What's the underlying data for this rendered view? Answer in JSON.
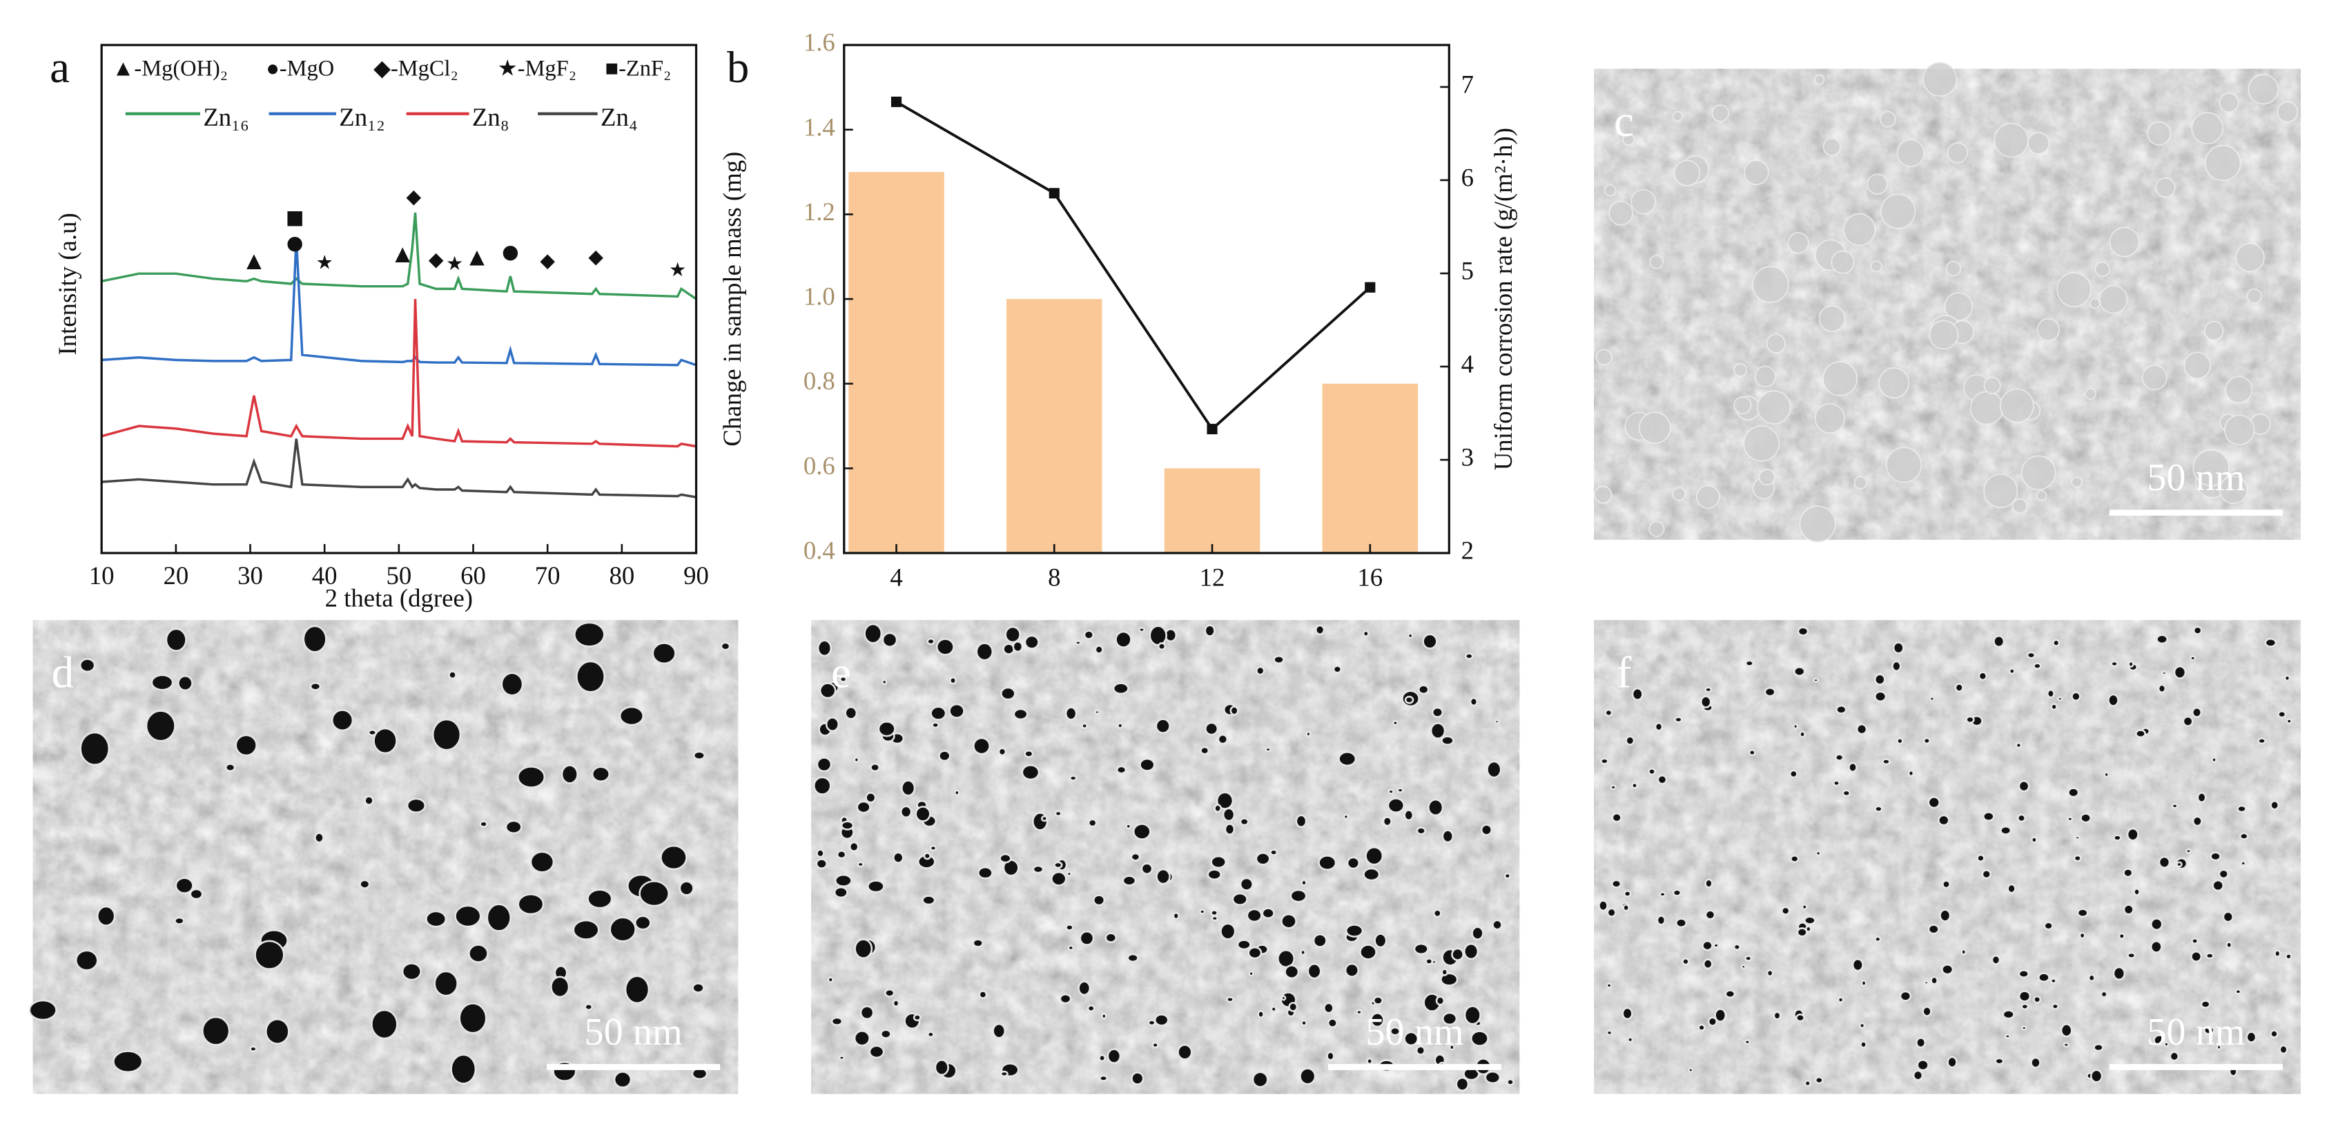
{
  "chart_data": [
    {
      "type": "line",
      "panel_label": "a",
      "xlabel": "2 theta (dgree)",
      "ylabel": "Intensity (a.u)",
      "xlim": [
        10,
        90
      ],
      "xticks": [
        10,
        20,
        30,
        40,
        50,
        60,
        70,
        80,
        90
      ],
      "ylim": [
        0,
        100
      ],
      "phase_legend": [
        "▲-Mg(OH)₂",
        "●-MgO",
        "◆-MgCl₂",
        "★-MgF₂",
        "■-ZnF₂"
      ],
      "peak_markers": [
        {
          "symbol": "▲",
          "x": 30.5,
          "y": 57.4
        },
        {
          "symbol": "■",
          "x": 36,
          "y": 65.9
        },
        {
          "symbol": "●",
          "x": 36,
          "y": 60.9
        },
        {
          "symbol": "★",
          "x": 40,
          "y": 57
        },
        {
          "symbol": "▲",
          "x": 50.5,
          "y": 58.8
        },
        {
          "symbol": "◆",
          "x": 52,
          "y": 70
        },
        {
          "symbol": "◆",
          "x": 55,
          "y": 57.6
        },
        {
          "symbol": "★",
          "x": 57.5,
          "y": 56.8
        },
        {
          "symbol": "▲",
          "x": 60.5,
          "y": 58.2
        },
        {
          "symbol": "●",
          "x": 65,
          "y": 59.1
        },
        {
          "symbol": "◆",
          "x": 70,
          "y": 57.4
        },
        {
          "symbol": "◆",
          "x": 76.5,
          "y": 58.2
        },
        {
          "symbol": "★",
          "x": 87.5,
          "y": 55.6
        }
      ],
      "x": [
        10,
        15,
        20,
        25,
        29.5,
        30.5,
        31.5,
        35.5,
        36.2,
        37,
        45,
        50.5,
        51.2,
        51.8,
        52.2,
        52.8,
        55,
        57.5,
        58,
        58.5,
        64.5,
        65,
        65.5,
        76,
        76.5,
        77,
        87.5,
        88,
        90
      ],
      "series": [
        {
          "name": "Zn₁₆",
          "color": "#3a9c5a",
          "values": [
            53.5,
            55,
            55,
            54,
            53.5,
            54,
            53.5,
            53,
            54,
            53,
            52.5,
            52.5,
            53,
            60,
            67,
            53,
            52,
            52,
            54,
            52,
            51.5,
            54.5,
            51.5,
            51,
            52,
            51,
            50.5,
            52,
            50
          ]
        },
        {
          "name": "Zn₁₂",
          "color": "#2f6fc4",
          "values": [
            38,
            38.5,
            38,
            37.8,
            37.8,
            38.5,
            37.8,
            38,
            62,
            39,
            37.8,
            37.6,
            37.8,
            37.8,
            38.5,
            37.6,
            37.5,
            37.5,
            38.5,
            37.5,
            37.4,
            40,
            37.4,
            37.2,
            39,
            37.2,
            37,
            38,
            37
          ]
        },
        {
          "name": "Zn₈",
          "color": "#d9363e",
          "values": [
            23,
            25,
            24.5,
            23.5,
            23,
            31,
            24,
            23,
            25,
            23,
            22.5,
            22.5,
            25,
            23,
            50,
            23,
            22.5,
            22,
            24,
            22,
            21.8,
            22.5,
            21.8,
            21.5,
            22,
            21.5,
            21,
            21.5,
            21
          ]
        },
        {
          "name": "Zn₄",
          "color": "#444444",
          "values": [
            14,
            14.5,
            14,
            13.5,
            13.5,
            18,
            14,
            13,
            22.5,
            13.5,
            13,
            13,
            14.5,
            13,
            13.5,
            12.8,
            12.5,
            12.5,
            13,
            12.3,
            12,
            13,
            12,
            11.5,
            12.5,
            11.5,
            11.2,
            11.5,
            11
          ]
        }
      ]
    },
    {
      "type": "bar",
      "panel_label": "b",
      "categories": [
        "4",
        "8",
        "12",
        "16"
      ],
      "ylabel": "Change in sample mass (mg)",
      "y2label": "Uniform corrosion rate (g/(m²·h))",
      "ylim": [
        0.4,
        1.6
      ],
      "yticks": [
        0.4,
        0.6,
        0.8,
        {
          "value": 1,
          "label": "1.0"
        },
        1.2,
        1.4,
        1.6
      ],
      "y2lim": [
        2,
        7.45
      ],
      "y2ticks": [
        2,
        3,
        4,
        5,
        6,
        7
      ],
      "ylabel_color": "#a8906a",
      "series": [
        {
          "name": "Change in sample mass (mg)",
          "color": "#f9c896",
          "values": [
            1.3,
            1.0,
            0.6,
            0.8
          ]
        },
        {
          "name": "Uniform corrosion rate (g/(m²·h))",
          "color": "#111111",
          "axis": "y2",
          "values": [
            6.84,
            5.86,
            3.33,
            4.85
          ]
        }
      ]
    }
  ],
  "images": [
    {
      "label": "c",
      "scale_bar": "50 nm"
    },
    {
      "label": "d",
      "scale_bar": "50 nm"
    },
    {
      "label": "e",
      "scale_bar": "50 nm"
    },
    {
      "label": "f",
      "scale_bar": "50 nm"
    }
  ]
}
